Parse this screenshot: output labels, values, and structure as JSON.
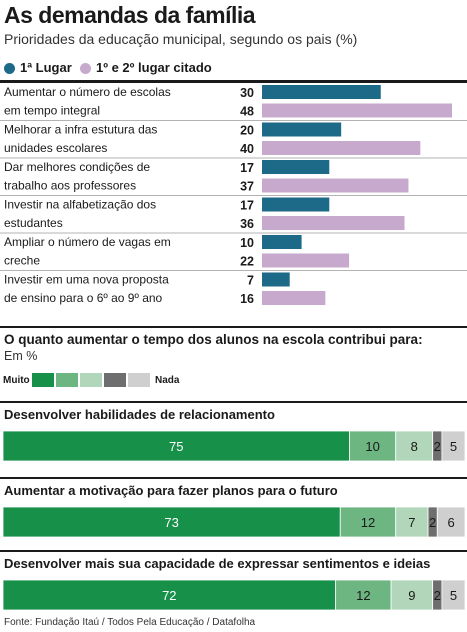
{
  "title": "As demandas da família",
  "subtitle": "Prioridades da educação municipal, segundo os pais (%)",
  "colors": {
    "first_place": "#1c6a88",
    "cited": "#c7a9cd",
    "stack": [
      "#17904a",
      "#6db681",
      "#b1d6b9",
      "#6e6e6e",
      "#cfcfcf"
    ]
  },
  "chart_data": [
    {
      "type": "bar",
      "orientation": "horizontal",
      "title": "As demandas da família",
      "subtitle": "Prioridades da educação municipal, segundo os pais (%)",
      "legend": [
        "1ª Lugar",
        "1º e 2º lugar citado"
      ],
      "legend_position": "top",
      "categories": [
        "Aumentar o número de escolas em tempo integral",
        "Melhorar a infra estutura das unidades escolares",
        "Dar melhores condições de trabalho aos professores",
        "Investir na alfabetização dos estudantes",
        "Ampliar o número de vagas em creche",
        "Investir em uma nova proposta de ensino para o 6º ao 9º ano"
      ],
      "category_lines": [
        [
          "Aumentar o número de escolas",
          "em tempo integral"
        ],
        [
          "Melhorar a infra estutura das",
          "unidades escolares"
        ],
        [
          "Dar melhores condições de",
          "trabalho aos professores"
        ],
        [
          "Investir na alfabetização dos",
          "estudantes"
        ],
        [
          "Ampliar o número de vagas em",
          "creche"
        ],
        [
          "Investir em uma nova proposta",
          "de ensino para o 6º ao 9º ano"
        ]
      ],
      "series": [
        {
          "name": "1ª Lugar",
          "values": [
            30,
            20,
            17,
            17,
            10,
            7
          ]
        },
        {
          "name": "1º e 2º lugar citado",
          "values": [
            48,
            40,
            37,
            36,
            22,
            16
          ]
        }
      ],
      "xlim": [
        0,
        50
      ],
      "grid": false
    },
    {
      "type": "bar",
      "orientation": "horizontal",
      "stacked": true,
      "title": "O quanto aumentar o tempo dos alunos na escola contribui para:",
      "unit": "Em %",
      "scale_labels": [
        "Muito",
        "Nada"
      ],
      "categories": [
        "Desenvolver habilidades de relacionamento",
        "Aumentar a motivação para fazer planos para o futuro",
        "Desenvolver mais sua capacidade de expressar sentimentos e ideias"
      ],
      "segments": [
        [
          75,
          10,
          8,
          2,
          5
        ],
        [
          73,
          12,
          7,
          2,
          6
        ],
        [
          72,
          12,
          9,
          2,
          5
        ]
      ],
      "xlim": [
        0,
        100
      ]
    }
  ],
  "source": "Fonte: Fundação Itaú / Todos Pela Educação / Datafolha"
}
